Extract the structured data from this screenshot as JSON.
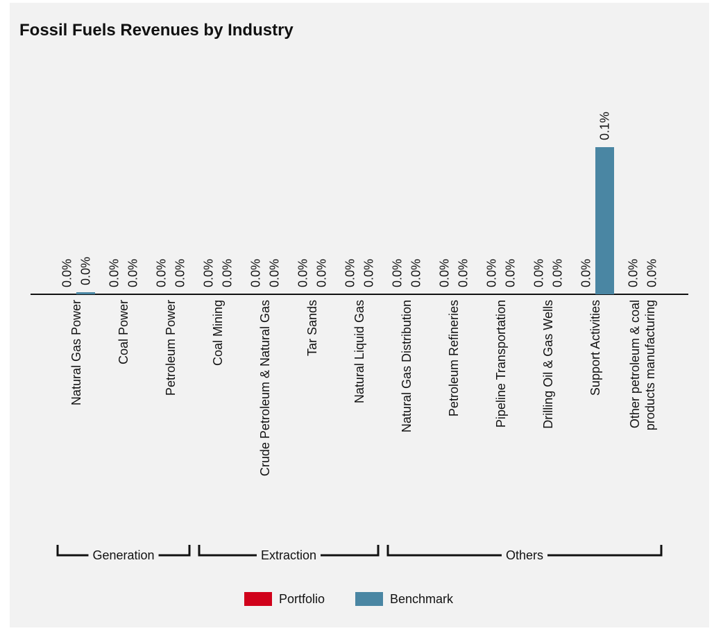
{
  "chart_data": {
    "type": "bar",
    "title": "Fossil Fuels Revenues by Industry",
    "categories": [
      "Natural Gas Power",
      "Coal Power",
      "Petroleum Power",
      "Coal Mining",
      "Crude Petroleum & Natural Gas",
      "Tar Sands",
      "Natural Liquid Gas",
      "Natural Gas Distribution",
      "Petroleum Refineries",
      "Pipeline Transportation",
      "Drilling Oil & Gas Wells",
      "Support Activities",
      "Other petroleum & coal products manufacturing"
    ],
    "series": [
      {
        "name": "Portfolio",
        "color": "#d0021b",
        "values": [
          0,
          0,
          0,
          0,
          0,
          0,
          0,
          0,
          0,
          0,
          0,
          0,
          0
        ],
        "value_labels": [
          "0.0%",
          "0.0%",
          "0.0%",
          "0.0%",
          "0.0%",
          "0.0%",
          "0.0%",
          "0.0%",
          "0.0%",
          "0.0%",
          "0.0%",
          "0.0%",
          "0.0%"
        ]
      },
      {
        "name": "Benchmark",
        "color": "#4a86a3",
        "values": [
          0.0014,
          0,
          0,
          0,
          0,
          0,
          0,
          0,
          0,
          0,
          0,
          0.1,
          0
        ],
        "value_labels": [
          "0.0%",
          "0.0%",
          "0.0%",
          "0.0%",
          "0.0%",
          "0.0%",
          "0.0%",
          "0.0%",
          "0.0%",
          "0.0%",
          "0.0%",
          "0.1%",
          "0.0%"
        ]
      }
    ],
    "groups": [
      {
        "name": "Generation",
        "count": 3
      },
      {
        "name": "Extraction",
        "count": 4
      },
      {
        "name": "Others",
        "count": 6
      }
    ],
    "legend": "bottom"
  }
}
